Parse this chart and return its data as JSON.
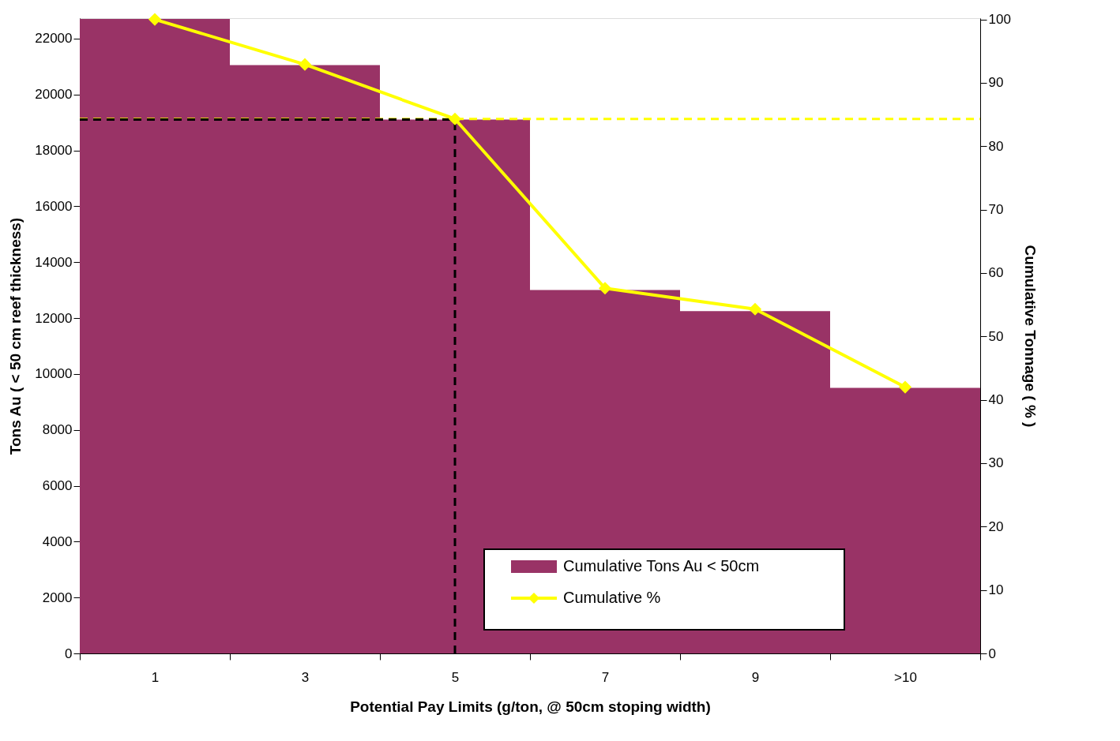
{
  "chart_data": {
    "type": "bar",
    "xlabel": "Potential Pay Limits (g/ton, @ 50cm stoping width)",
    "ylabel": "Tons Au ( < 50 cm reef thickness)",
    "y2label": "Cumulative Tonnage ( % )",
    "categories": [
      "1",
      "3",
      "5",
      "7",
      "9",
      ">10"
    ],
    "series": [
      {
        "name": "Cumulative Tons  Au < 50cm",
        "color": "#993366",
        "values": [
          22700,
          21050,
          19100,
          13000,
          12250,
          9500
        ]
      },
      {
        "name": "Cumulative %",
        "type": "line",
        "axis": "y2",
        "color": "#ffff00",
        "marker": "diamond",
        "line_style": "solid",
        "values": [
          100,
          92.9,
          84.3,
          57.6,
          54.3,
          42.0
        ]
      }
    ],
    "ylim": [
      0,
      22730
    ],
    "yticks": [
      0,
      2000,
      4000,
      6000,
      8000,
      10000,
      12000,
      14000,
      16000,
      18000,
      20000,
      22000
    ],
    "y2lim": [
      0,
      100.2
    ],
    "y2ticks": [
      0,
      10,
      20,
      30,
      40,
      50,
      60,
      70,
      80,
      90,
      100
    ],
    "ref_lines": [
      {
        "axis": "y2",
        "value": 84.3,
        "color": "#ffff00",
        "line_style": "dashed"
      },
      {
        "axis": "y",
        "value": 19100,
        "color": "#000000",
        "line_style": "dashed"
      },
      {
        "axis": "x",
        "value": "5",
        "color": "#000000",
        "line_style": "dashed"
      }
    ],
    "legend": "bottom right",
    "grid": false
  }
}
